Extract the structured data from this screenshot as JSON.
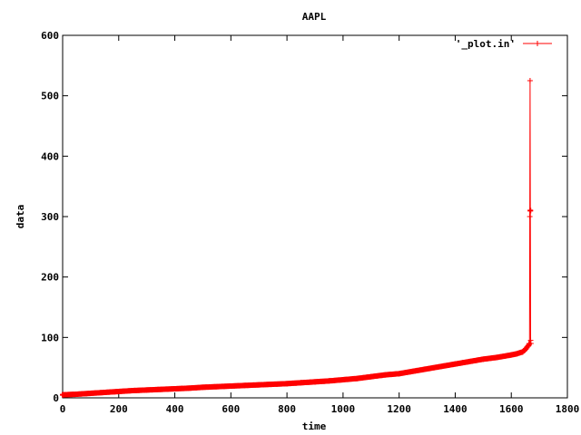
{
  "chart_data": {
    "type": "line",
    "title": "AAPL",
    "xlabel": "time",
    "ylabel": "data",
    "xlim": [
      0,
      1800
    ],
    "ylim": [
      0,
      600
    ],
    "x_ticks": [
      0,
      200,
      400,
      600,
      800,
      1000,
      1200,
      1400,
      1600,
      1800
    ],
    "y_ticks": [
      0,
      100,
      200,
      300,
      400,
      500,
      600
    ],
    "grid": false,
    "legend_position": "top-right",
    "series": [
      {
        "name": "'_plot.in'",
        "color": "#ff0000",
        "marker": "plus",
        "x": [
          0,
          50,
          100,
          150,
          200,
          250,
          300,
          350,
          400,
          450,
          500,
          550,
          600,
          650,
          700,
          750,
          800,
          850,
          900,
          950,
          1000,
          1050,
          1100,
          1150,
          1200,
          1250,
          1300,
          1350,
          1400,
          1450,
          1500,
          1550,
          1600,
          1620,
          1640,
          1650,
          1660,
          1665,
          1666,
          1667,
          1668,
          1669,
          1670
        ],
        "y": [
          5,
          6,
          7.5,
          9,
          10.5,
          12,
          13,
          14,
          15,
          16,
          17.5,
          18.5,
          19.5,
          20.5,
          21.5,
          22.5,
          23.5,
          25,
          26.5,
          28,
          30,
          32,
          35,
          38,
          40,
          44,
          48,
          52,
          56,
          60,
          64,
          67,
          71,
          73,
          76,
          80,
          86,
          90,
          300,
          525,
          310,
          95,
          90
        ]
      }
    ]
  }
}
